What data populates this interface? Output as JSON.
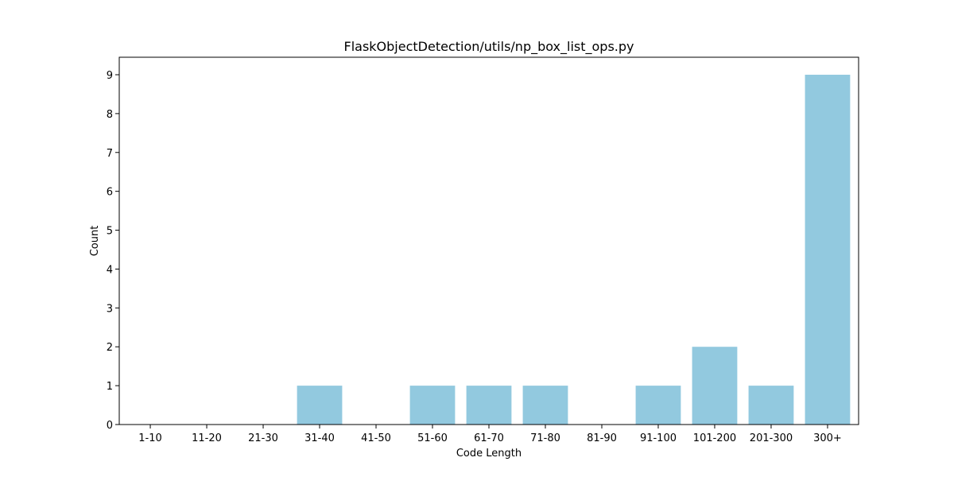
{
  "chart_data": {
    "type": "bar",
    "title": "FlaskObjectDetection/utils/np_box_list_ops.py",
    "xlabel": "Code Length",
    "ylabel": "Count",
    "categories": [
      "1-10",
      "11-20",
      "21-30",
      "31-40",
      "41-50",
      "51-60",
      "61-70",
      "71-80",
      "81-90",
      "91-100",
      "101-200",
      "201-300",
      "300+"
    ],
    "values": [
      0,
      0,
      0,
      1,
      0,
      1,
      1,
      1,
      0,
      1,
      2,
      1,
      9
    ],
    "ylim": [
      0,
      9.45
    ],
    "yticks": [
      "0",
      "1",
      "2",
      "3",
      "4",
      "5",
      "6",
      "7",
      "8",
      "9"
    ],
    "grid": false,
    "legend": "none",
    "bar_color": "#92c9df"
  }
}
